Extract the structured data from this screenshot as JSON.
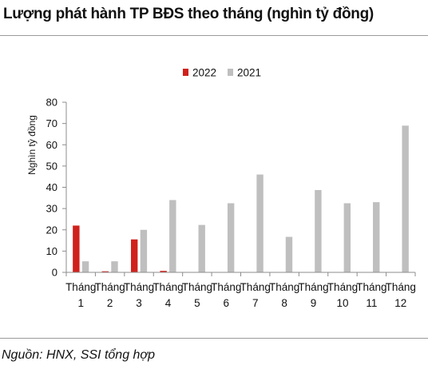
{
  "header": {
    "title": "Lượng phát hành TP BĐS theo tháng (nghìn tỷ đồng)"
  },
  "footer": {
    "source": "Nguồn: HNX, SSI tổng hợp"
  },
  "chart_data": {
    "type": "bar",
    "title": "",
    "xlabel": "",
    "ylabel": "Nghìn tỷ đồng",
    "ylim": [
      0,
      80
    ],
    "yticks": [
      0,
      10,
      20,
      30,
      40,
      50,
      60,
      70,
      80
    ],
    "grid": false,
    "legend_position": "top-center",
    "categories": [
      [
        "Tháng",
        "1"
      ],
      [
        "Tháng",
        "2"
      ],
      [
        "Tháng",
        "3"
      ],
      [
        "Tháng",
        "4"
      ],
      [
        "Tháng",
        "5"
      ],
      [
        "Tháng",
        "6"
      ],
      [
        "Tháng",
        "7"
      ],
      [
        "Tháng",
        "8"
      ],
      [
        "Tháng",
        "9"
      ],
      [
        "Tháng",
        "10"
      ],
      [
        "Tháng",
        "11"
      ],
      [
        "Tháng",
        "12"
      ]
    ],
    "series": [
      {
        "name": "2022",
        "color": "#d0211c",
        "values": [
          22,
          0.5,
          15.5,
          0.7,
          0,
          0,
          0,
          0,
          0,
          0,
          0,
          0
        ]
      },
      {
        "name": "2021",
        "color": "#bfbfbf",
        "values": [
          5.2,
          5.2,
          20,
          34,
          22.3,
          32.5,
          46,
          16.7,
          38.7,
          32.5,
          33,
          69
        ]
      }
    ]
  }
}
